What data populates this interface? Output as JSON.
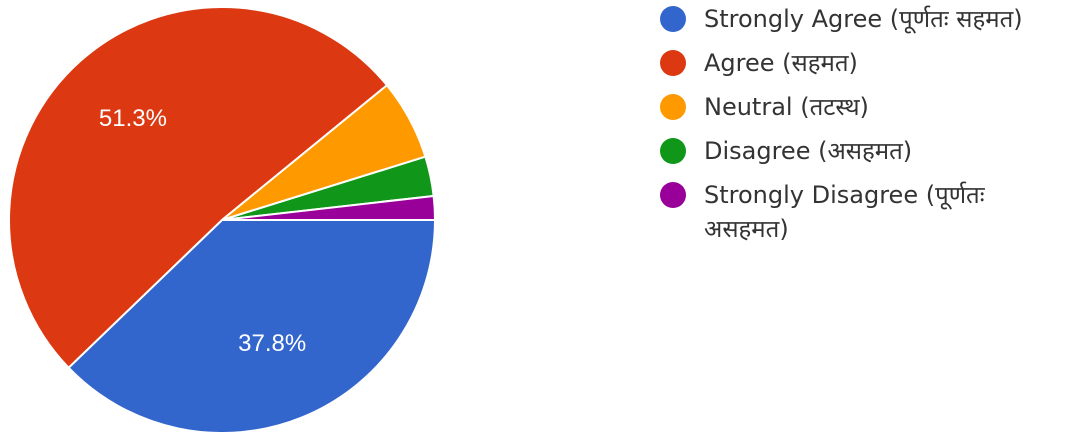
{
  "chart_data": {
    "type": "pie",
    "slices": [
      {
        "label": "Strongly Agree (पूर्णतः सहमत)",
        "value": 37.8,
        "display": "37.8%",
        "color": "#3366CC"
      },
      {
        "label": "Agree (सहमत)",
        "value": 51.3,
        "display": "51.3%",
        "color": "#DC3912"
      },
      {
        "label": "Neutral (तटस्थ)",
        "value": 6.1,
        "display": "",
        "color": "#FF9900"
      },
      {
        "label": "Disagree (असहमत)",
        "value": 3.0,
        "display": "",
        "color": "#109618"
      },
      {
        "label": "Strongly Disagree (पूर्णतः असहमत)",
        "value": 1.8,
        "display": "",
        "color": "#990099"
      }
    ],
    "legend_position": "right"
  }
}
